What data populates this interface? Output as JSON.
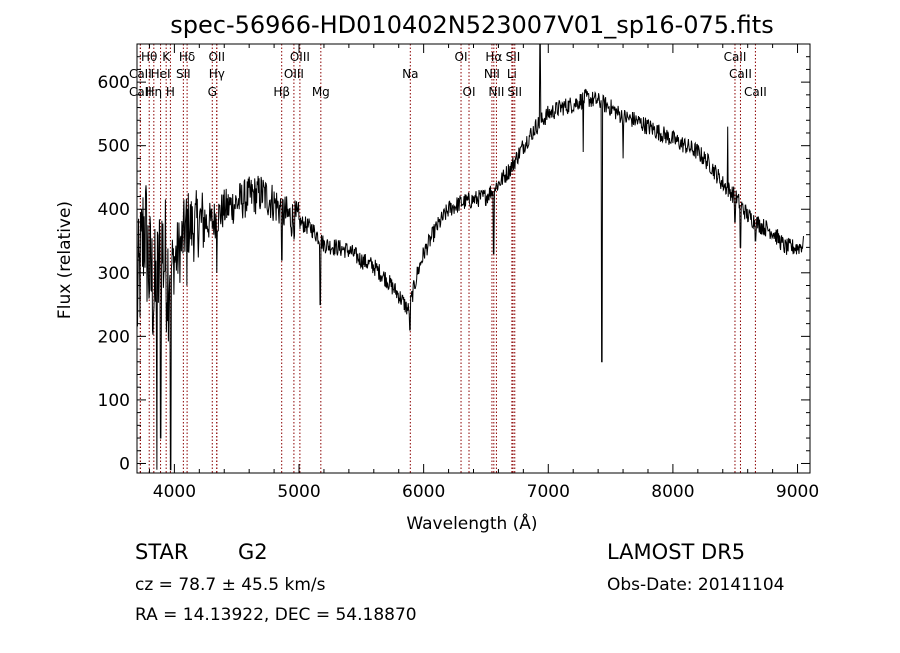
{
  "chart_data": {
    "type": "line",
    "title": "spec-56966-HD010402N523007V01_sp16-075.fits",
    "xlabel": "Wavelength (Å)",
    "ylabel": "Flux (relative)",
    "xlim": [
      3700,
      9100
    ],
    "ylim": [
      -15,
      660
    ],
    "x_ticks": [
      4000,
      5000,
      6000,
      7000,
      8000,
      9000
    ],
    "y_ticks": [
      0,
      100,
      200,
      300,
      400,
      500,
      600
    ],
    "grid": false,
    "line_color": "#000000",
    "marker_color": "#8b0000",
    "spectrum_control_points": [
      [
        3700,
        250
      ],
      [
        3760,
        380
      ],
      [
        3800,
        300
      ],
      [
        3850,
        260
      ],
      [
        3900,
        340
      ],
      [
        3950,
        300
      ],
      [
        4000,
        320
      ],
      [
        4050,
        340
      ],
      [
        4100,
        380
      ],
      [
        4150,
        370
      ],
      [
        4200,
        380
      ],
      [
        4300,
        380
      ],
      [
        4400,
        400
      ],
      [
        4500,
        410
      ],
      [
        4600,
        420
      ],
      [
        4700,
        425
      ],
      [
        4800,
        410
      ],
      [
        4900,
        390
      ],
      [
        5000,
        380
      ],
      [
        5100,
        370
      ],
      [
        5200,
        345
      ],
      [
        5300,
        340
      ],
      [
        5400,
        335
      ],
      [
        5500,
        320
      ],
      [
        5600,
        310
      ],
      [
        5700,
        290
      ],
      [
        5800,
        265
      ],
      [
        5880,
        240
      ],
      [
        5950,
        300
      ],
      [
        6000,
        330
      ],
      [
        6100,
        370
      ],
      [
        6200,
        400
      ],
      [
        6300,
        410
      ],
      [
        6400,
        415
      ],
      [
        6500,
        420
      ],
      [
        6600,
        440
      ],
      [
        6700,
        465
      ],
      [
        6800,
        500
      ],
      [
        6900,
        530
      ],
      [
        7000,
        550
      ],
      [
        7100,
        560
      ],
      [
        7200,
        565
      ],
      [
        7300,
        575
      ],
      [
        7400,
        570
      ],
      [
        7500,
        560
      ],
      [
        7600,
        545
      ],
      [
        7700,
        540
      ],
      [
        7800,
        530
      ],
      [
        7900,
        520
      ],
      [
        8000,
        510
      ],
      [
        8100,
        500
      ],
      [
        8200,
        490
      ],
      [
        8300,
        470
      ],
      [
        8400,
        440
      ],
      [
        8500,
        420
      ],
      [
        8600,
        390
      ],
      [
        8700,
        375
      ],
      [
        8800,
        365
      ],
      [
        8900,
        340
      ],
      [
        9000,
        340
      ],
      [
        9050,
        345
      ]
    ],
    "absorption_features": [
      [
        3860,
        -10
      ],
      [
        3890,
        40
      ],
      [
        3970,
        -10
      ],
      [
        4100,
        280
      ],
      [
        4340,
        300
      ],
      [
        4861,
        320
      ],
      [
        5170,
        250
      ],
      [
        5890,
        210
      ],
      [
        6563,
        330
      ],
      [
        6870,
        510
      ],
      [
        7280,
        490
      ],
      [
        7430,
        160
      ],
      [
        7600,
        480
      ],
      [
        8498,
        380
      ],
      [
        8542,
        340
      ],
      [
        8662,
        350
      ]
    ],
    "emission_features": [
      [
        6935,
        680
      ],
      [
        8440,
        530
      ]
    ],
    "line_markers": [
      {
        "label": "Hθ",
        "x": 3798,
        "row": 1
      },
      {
        "label": "K",
        "x": 3934,
        "row": 1
      },
      {
        "label": "Hδ",
        "x": 4102,
        "row": 1
      },
      {
        "label": "OII",
        "x": 4340,
        "row": 1
      },
      {
        "label": "OIII",
        "x": 5007,
        "row": 1
      },
      {
        "label": "OI",
        "x": 6300,
        "row": 1
      },
      {
        "label": "Hα",
        "x": 6563,
        "row": 1
      },
      {
        "label": "SII",
        "x": 6717,
        "row": 1
      },
      {
        "label": "CaII",
        "x": 8498,
        "row": 1
      },
      {
        "label": "CaII",
        "x": 3727,
        "row": 2
      },
      {
        "label": "HeI",
        "x": 3889,
        "row": 2
      },
      {
        "label": "SII",
        "x": 4072,
        "row": 2
      },
      {
        "label": "Hγ",
        "x": 4340,
        "row": 2
      },
      {
        "label": "OIII",
        "x": 4959,
        "row": 2
      },
      {
        "label": "Na",
        "x": 5893,
        "row": 2
      },
      {
        "label": "NII",
        "x": 6548,
        "row": 2
      },
      {
        "label": "Li",
        "x": 6708,
        "row": 2
      },
      {
        "label": "CaII",
        "x": 8542,
        "row": 2
      },
      {
        "label": "CaII",
        "x": 3727,
        "row": 3
      },
      {
        "label": "Hη",
        "x": 3835,
        "row": 3
      },
      {
        "label": "H",
        "x": 3968,
        "row": 3
      },
      {
        "label": "G",
        "x": 4304,
        "row": 3
      },
      {
        "label": "Hβ",
        "x": 4861,
        "row": 3
      },
      {
        "label": "Mg",
        "x": 5175,
        "row": 3
      },
      {
        "label": "OI",
        "x": 6364,
        "row": 3
      },
      {
        "label": "NII",
        "x": 6584,
        "row": 3
      },
      {
        "label": "SII",
        "x": 6731,
        "row": 3
      },
      {
        "label": "CaII",
        "x": 8662,
        "row": 3
      }
    ]
  },
  "footer": {
    "class_label": "STAR",
    "subclass": "G2",
    "survey": "LAMOST DR5",
    "cz": "cz = 78.7 ± 45.5 km/s",
    "obs_date": "Obs-Date: 20141104",
    "coords": "RA =  14.13922, DEC =  54.18870"
  }
}
